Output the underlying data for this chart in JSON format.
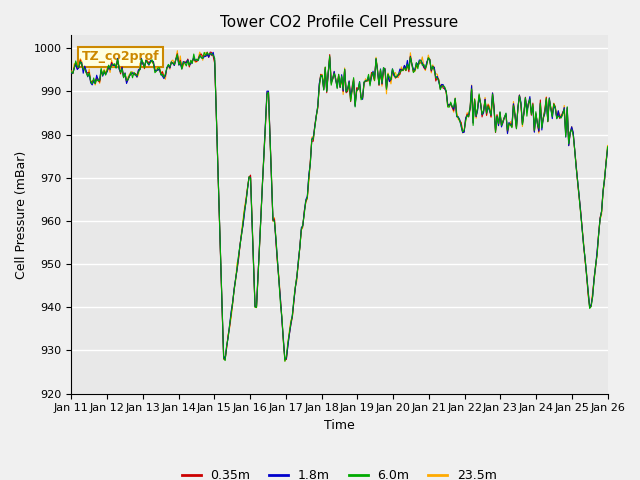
{
  "title": "Tower CO2 Profile Cell Pressure",
  "xlabel": "Time",
  "ylabel": "Cell Pressure (mBar)",
  "ylim": [
    920,
    1003
  ],
  "yticks": [
    920,
    930,
    940,
    950,
    960,
    970,
    980,
    990,
    1000
  ],
  "xtick_labels": [
    "Jan 11",
    "Jan 12",
    "Jan 13",
    "Jan 14",
    "Jan 15",
    "Jan 16",
    "Jan 17",
    "Jan 18",
    "Jan 19",
    "Jan 20",
    "Jan 21",
    "Jan 22",
    "Jan 23",
    "Jan 24",
    "Jan 25",
    "Jan 26"
  ],
  "colors": {
    "0.35m": "#cc0000",
    "1.8m": "#0000cc",
    "6.0m": "#00aa00",
    "23.5m": "#ffaa00"
  },
  "legend_labels": [
    "0.35m",
    "1.8m",
    "6.0m",
    "23.5m"
  ],
  "annotation_text": "TZ_co2prof",
  "annotation_color": "#cc8800",
  "background_color": "#e8e8e8",
  "grid_color": "#ffffff"
}
